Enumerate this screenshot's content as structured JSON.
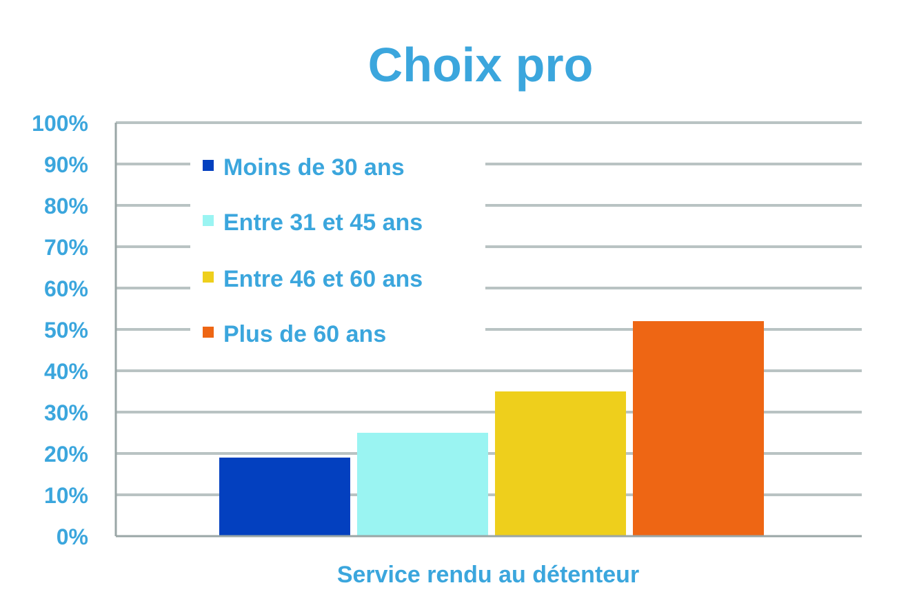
{
  "chart_data": {
    "type": "bar",
    "title": "Choix pro",
    "xlabel": "Service rendu au détenteur",
    "ylabel": "",
    "categories": [
      "Service rendu au détenteur"
    ],
    "series": [
      {
        "name": "Moins de 30 ans",
        "values": [
          19
        ],
        "color": "#0340bf"
      },
      {
        "name": "Entre 31 et 45 ans",
        "values": [
          25
        ],
        "color": "#9af4f2"
      },
      {
        "name": "Entre 46 et 60 ans",
        "values": [
          35
        ],
        "color": "#eecf1c"
      },
      {
        "name": "Plus de 60 ans",
        "values": [
          52
        ],
        "color": "#ee6614"
      }
    ],
    "ylim": [
      0,
      100
    ],
    "yticks": [
      0,
      10,
      20,
      30,
      40,
      50,
      60,
      70,
      80,
      90,
      100
    ],
    "ytick_labels": [
      "0%",
      "10%",
      "20%",
      "30%",
      "40%",
      "50%",
      "60%",
      "70%",
      "80%",
      "90%",
      "100%"
    ],
    "grid": true,
    "legend_position": "top-left"
  },
  "colors": {
    "text": "#3ba6dd",
    "grid": "#b9c3c3",
    "axis": "#9aa6a6",
    "background": "#ffffff"
  }
}
